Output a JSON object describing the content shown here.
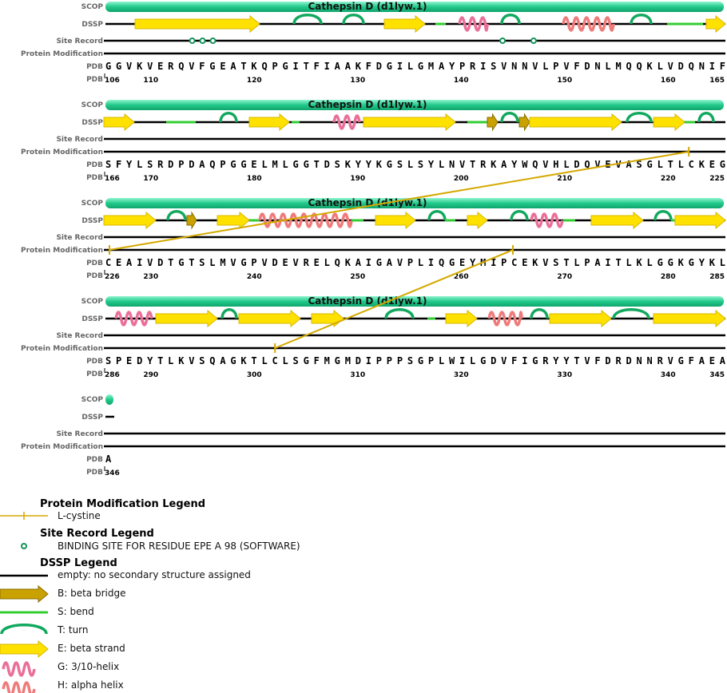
{
  "track_labels": [
    "SCOP",
    "DSSP",
    "Site Record",
    "Protein Modification",
    "PDB",
    "PDB"
  ],
  "blocks": [
    {
      "scop": "Cathepsin D (d1lyw.1)",
      "sequence": "GGVKVERQVFGEATKQPGITFIAAKFDGILGMAYPRISVNNVLPVFDNLMQQKLVDQNIF",
      "residue_numbers": [
        106,
        110,
        120,
        130,
        140,
        150,
        160,
        165
      ]
    },
    {
      "scop": "Cathepsin D (d1lyw.1)",
      "sequence": "SFYLSRDPDAQPGGELMLGGTDSKYYKGSLSYLNVTRKAYWQVHLDQVEVASGLTLCKEG",
      "residue_numbers": [
        166,
        170,
        180,
        190,
        200,
        210,
        220,
        225
      ]
    },
    {
      "scop": "Cathepsin D (d1lyw.1)",
      "sequence": "CEAIVDTGTSLMVGPVDEVRELQKAIGAVPLIQGEYMIPCEKVSTLPAITLKLGGKGYKL",
      "residue_numbers": [
        226,
        230,
        240,
        250,
        260,
        270,
        280,
        285
      ]
    },
    {
      "scop": "Cathepsin D (d1lyw.1)",
      "sequence": "SPEDYTLKVSQAGKTLCLSGFMGMDIPPPSGPLWILGDVFIGRYYTVFDRDNNRVGFAEA",
      "residue_numbers": [
        286,
        290,
        300,
        310,
        320,
        330,
        340,
        345
      ]
    },
    {
      "sequence": "A",
      "residue_numbers": [
        346
      ]
    }
  ],
  "legends": {
    "protein_modification": {
      "title": "Protein Modification Legend",
      "items": [
        "L-cystine"
      ]
    },
    "site_record": {
      "title": "Site Record Legend",
      "items": [
        "BINDING SITE FOR RESIDUE EPE A 98 (SOFTWARE)"
      ]
    },
    "dssp": {
      "title": "DSSP Legend",
      "items": [
        "empty: no secondary structure assigned",
        "B: beta bridge",
        "S: bend",
        "T: turn",
        "E: beta strand",
        "G: 3/10-helix",
        "H: alpha helix"
      ]
    }
  }
}
